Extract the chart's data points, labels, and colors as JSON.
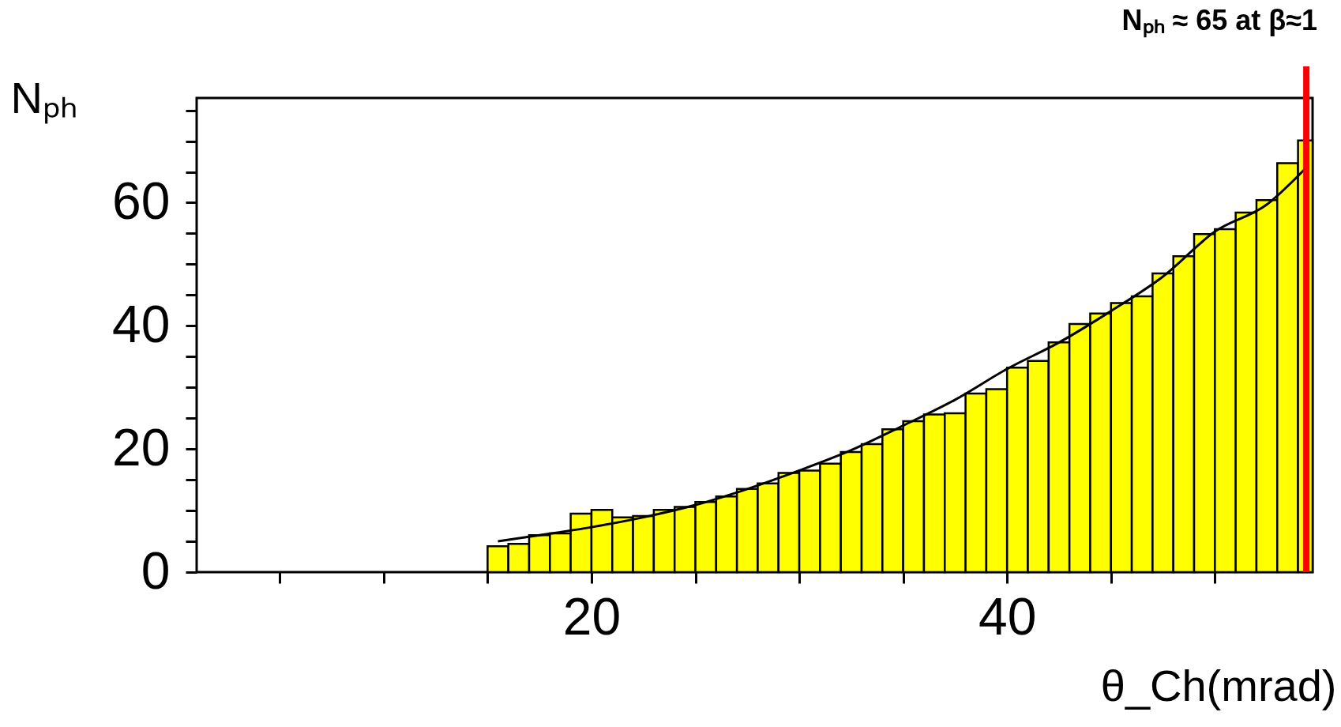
{
  "chart_data": {
    "type": "histogram",
    "xlabel": "θ_Ch(mrad)",
    "ylabel": "Nₚₕ",
    "color": "#ffff00",
    "bins": [
      15,
      16,
      17,
      18,
      19,
      20,
      21,
      22,
      23,
      24,
      25,
      26,
      27,
      28,
      29,
      30,
      31,
      32,
      33,
      34,
      35,
      36,
      37,
      38,
      39,
      40,
      41,
      42,
      43,
      44,
      45,
      46,
      47,
      48,
      49,
      50,
      51,
      52,
      53,
      54,
      54.7
    ],
    "values": [
      4.2,
      4.6,
      6.0,
      6.3,
      9.5,
      10.1,
      8.9,
      9.1,
      10.1,
      10.6,
      11.4,
      12.3,
      13.5,
      14.4,
      16.1,
      16.5,
      17.6,
      19.5,
      20.8,
      23.2,
      24.5,
      25.6,
      25.8,
      29.0,
      29.7,
      33.2,
      34.3,
      37.3,
      40.3,
      42.0,
      43.7,
      44.8,
      48.5,
      51.3,
      54.9,
      55.7,
      58.4,
      60.4,
      66.4,
      70.1
    ],
    "series": [
      {
        "type": "line",
        "color": "#000000",
        "x": [
          15.5,
          17.5,
          20,
          22.5,
          25,
          27.5,
          30,
          32.5,
          35,
          37.5,
          40,
          42.5,
          45,
          47.5,
          50,
          52.5,
          54.4
        ],
        "values": [
          5.0,
          6.0,
          7.3,
          8.9,
          10.9,
          13.5,
          16.5,
          19.8,
          23.8,
          28.0,
          33.0,
          37.3,
          42.4,
          48.0,
          55.3,
          59.7,
          65.7
        ]
      }
    ],
    "xlim": [
      1,
      54.7
    ],
    "ylim": [
      0,
      77
    ],
    "xticks": [
      {
        "value": 5,
        "label": null
      },
      {
        "value": 10,
        "label": null
      },
      {
        "value": 15,
        "label": null
      },
      20,
      {
        "value": 25,
        "label": null
      },
      {
        "value": 30,
        "label": null
      },
      {
        "value": 35,
        "label": null
      },
      40,
      {
        "value": 45,
        "label": null
      },
      {
        "value": 50,
        "label": null
      }
    ],
    "yticks": [
      0,
      {
        "value": 5,
        "label": null
      },
      {
        "value": 10,
        "label": null
      },
      {
        "value": 15,
        "label": null
      },
      20,
      {
        "value": 25,
        "label": null
      },
      {
        "value": 30,
        "label": null
      },
      {
        "value": 35,
        "label": null
      },
      40,
      {
        "value": 45,
        "label": null
      },
      {
        "value": 50,
        "label": null
      },
      {
        "value": 55,
        "label": null
      },
      60,
      {
        "value": 65,
        "label": null
      },
      {
        "value": 70,
        "label": null
      },
      {
        "value": 75,
        "label": null
      }
    ],
    "ref_lines": [
      {
        "axis": "x",
        "value": 54.4,
        "label": "Nₚₕ ≈ 65 at β≈1",
        "color": "#ff0000"
      }
    ],
    "grid": false
  }
}
